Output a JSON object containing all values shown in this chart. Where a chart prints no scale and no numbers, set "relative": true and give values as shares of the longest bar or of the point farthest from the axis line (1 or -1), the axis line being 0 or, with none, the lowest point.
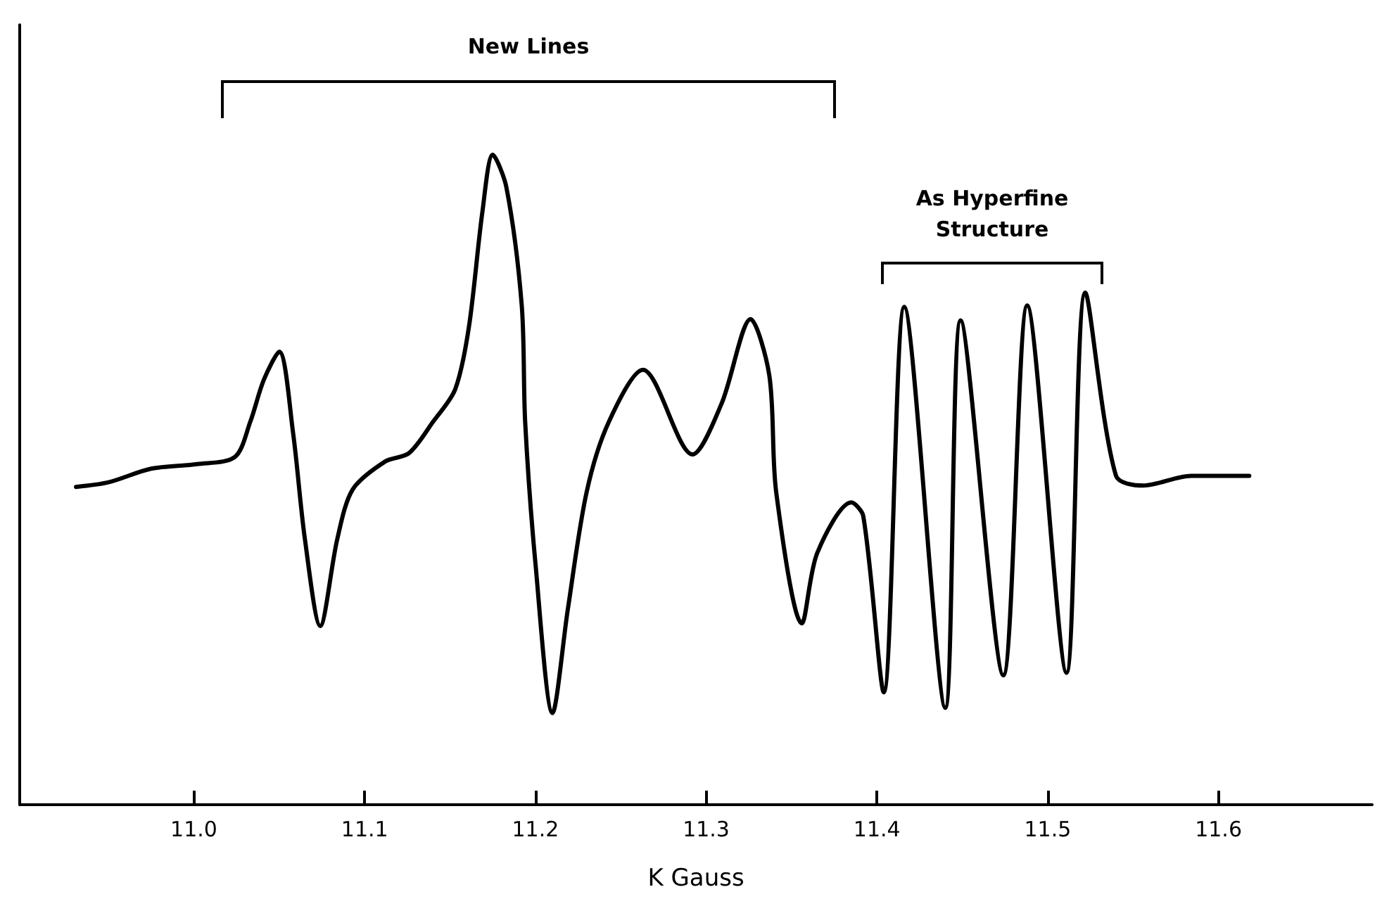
{
  "chart_data": {
    "type": "line",
    "relative": true,
    "xlabel": "K Gauss",
    "xlim": [
      10.898,
      11.69
    ],
    "xticks": [
      {
        "value": 11,
        "label": "11.0"
      },
      11.1,
      11.2,
      11.3,
      11.4,
      11.5,
      11.6
    ],
    "marker": "none",
    "line_style": "solid",
    "grid": false,
    "annotations": [
      "New Lines",
      "As Hyperfine Structure"
    ],
    "series": [
      {
        "color": "#000000",
        "x": [
          10.931,
          10.95,
          10.975,
          11.002,
          11.024,
          11.033,
          11.041,
          11.05,
          11.058,
          11.065,
          11.074,
          11.084,
          11.093,
          11.112,
          11.126,
          11.14,
          11.153,
          11.161,
          11.169,
          11.175,
          11.183,
          11.192,
          11.194,
          11.2,
          11.21,
          11.219,
          11.23,
          11.243,
          11.263,
          11.292,
          11.309,
          11.326,
          11.337,
          11.341,
          11.356,
          11.365,
          11.385,
          11.392,
          11.404,
          11.416,
          11.44,
          11.449,
          11.474,
          11.488,
          11.511,
          11.522,
          11.54,
          11.556,
          11.584,
          11.618
        ],
        "values": [
          0.489,
          0.496,
          0.517,
          0.524,
          0.535,
          0.589,
          0.654,
          0.697,
          0.574,
          0.409,
          0.275,
          0.409,
          0.485,
          0.528,
          0.541,
          0.589,
          0.639,
          0.734,
          0.913,
          1,
          0.95,
          0.768,
          0.589,
          0.372,
          0.141,
          0.301,
          0.481,
          0.589,
          0.669,
          0.539,
          0.617,
          0.747,
          0.66,
          0.481,
          0.279,
          0.387,
          0.465,
          0.444,
          0.173,
          0.766,
          0.149,
          0.745,
          0.199,
          0.768,
          0.203,
          0.788,
          0.506,
          0.491,
          0.506,
          0.506
        ]
      }
    ]
  }
}
